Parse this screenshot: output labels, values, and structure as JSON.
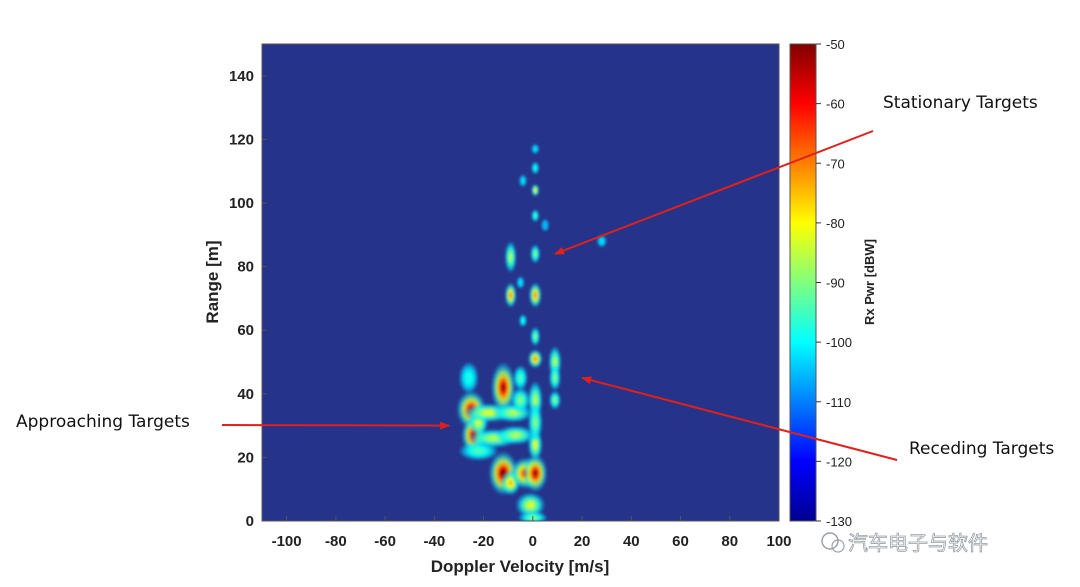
{
  "chart_data": {
    "type": "heatmap",
    "title": "",
    "xlabel": "Doppler Velocity [m/s]",
    "ylabel": "Range [m]",
    "xlim": [
      -110,
      100
    ],
    "ylim": [
      0,
      150
    ],
    "xticks": [
      -100,
      -80,
      -60,
      -40,
      -20,
      0,
      20,
      40,
      60,
      80,
      100
    ],
    "yticks": [
      0,
      20,
      40,
      60,
      80,
      100,
      120,
      140
    ],
    "colorbar": {
      "label": "Rx Pwr [dBW]",
      "range": [
        -130,
        -50
      ],
      "ticks": [
        -50,
        -60,
        -70,
        -80,
        -90,
        -100,
        -110,
        -120,
        -130
      ],
      "colormap": "jet"
    },
    "background_color": "#25338a",
    "blobs": [
      {
        "v": -25,
        "r": 35,
        "dv": 3,
        "dr": 3,
        "level": 0.95
      },
      {
        "v": -24,
        "r": 27,
        "dv": 2.5,
        "dr": 3,
        "level": 0.95
      },
      {
        "v": -22,
        "r": 31,
        "dv": 2,
        "dr": 2,
        "level": 0.6
      },
      {
        "v": -18,
        "r": 34,
        "dv": 5,
        "dr": 1.5,
        "level": 0.6
      },
      {
        "v": -16,
        "r": 26,
        "dv": 5,
        "dr": 1.5,
        "level": 0.55
      },
      {
        "v": -22,
        "r": 22,
        "dv": 4,
        "dr": 1.5,
        "level": 0.45
      },
      {
        "v": -26,
        "r": 45,
        "dv": 2,
        "dr": 2.5,
        "level": 0.4
      },
      {
        "v": -12,
        "r": 42,
        "dv": 2.5,
        "dr": 4,
        "level": 0.95
      },
      {
        "v": -12,
        "r": 15,
        "dv": 3,
        "dr": 3.5,
        "level": 1.0
      },
      {
        "v": -9,
        "r": 12,
        "dv": 2,
        "dr": 2,
        "level": 0.7
      },
      {
        "v": -8,
        "r": 34,
        "dv": 4,
        "dr": 1.5,
        "level": 0.55
      },
      {
        "v": -7,
        "r": 27,
        "dv": 4,
        "dr": 1.5,
        "level": 0.55
      },
      {
        "v": -5,
        "r": 38,
        "dv": 2,
        "dr": 2,
        "level": 0.5
      },
      {
        "v": -5,
        "r": 45,
        "dv": 1.5,
        "dr": 2,
        "level": 0.45
      },
      {
        "v": -3,
        "r": 15,
        "dv": 3,
        "dr": 2.5,
        "level": 0.85
      },
      {
        "v": 1,
        "r": 15,
        "dv": 2.5,
        "dr": 3,
        "level": 0.95
      },
      {
        "v": 1,
        "r": 24,
        "dv": 1.5,
        "dr": 2.5,
        "level": 0.6
      },
      {
        "v": -1,
        "r": 5,
        "dv": 3,
        "dr": 2,
        "level": 0.6
      },
      {
        "v": 0,
        "r": 1,
        "dv": 3,
        "dr": 1,
        "level": 0.5
      },
      {
        "v": 1,
        "r": 38,
        "dv": 1.5,
        "dr": 3,
        "level": 0.55
      },
      {
        "v": 1,
        "r": 31,
        "dv": 1.5,
        "dr": 3,
        "level": 0.5
      },
      {
        "v": 1,
        "r": 51,
        "dv": 1.5,
        "dr": 1.5,
        "level": 0.75
      },
      {
        "v": 1,
        "r": 58,
        "dv": 1,
        "dr": 1.5,
        "level": 0.5
      },
      {
        "v": 1,
        "r": 71,
        "dv": 1.3,
        "dr": 2,
        "level": 0.75
      },
      {
        "v": 1,
        "r": 84,
        "dv": 1,
        "dr": 1.5,
        "level": 0.5
      },
      {
        "v": 1,
        "r": 96,
        "dv": 0.8,
        "dr": 1,
        "level": 0.45
      },
      {
        "v": 1,
        "r": 104,
        "dv": 0.8,
        "dr": 1,
        "level": 0.65
      },
      {
        "v": 1,
        "r": 111,
        "dv": 0.6,
        "dr": 1,
        "level": 0.4
      },
      {
        "v": 1,
        "r": 117,
        "dv": 0.6,
        "dr": 0.8,
        "level": 0.35
      },
      {
        "v": -9,
        "r": 71,
        "dv": 1.2,
        "dr": 2,
        "level": 0.75
      },
      {
        "v": -9,
        "r": 83,
        "dv": 1.2,
        "dr": 2.5,
        "level": 0.55
      },
      {
        "v": -4,
        "r": 63,
        "dv": 0.8,
        "dr": 1,
        "level": 0.4
      },
      {
        "v": -5,
        "r": 75,
        "dv": 0.8,
        "dr": 1,
        "level": 0.35
      },
      {
        "v": -4,
        "r": 107,
        "dv": 0.6,
        "dr": 1,
        "level": 0.35
      },
      {
        "v": 5,
        "r": 93,
        "dv": 0.6,
        "dr": 1,
        "level": 0.3
      },
      {
        "v": 9,
        "r": 50,
        "dv": 1.3,
        "dr": 2.5,
        "level": 0.55
      },
      {
        "v": 9,
        "r": 45,
        "dv": 1.2,
        "dr": 2,
        "level": 0.5
      },
      {
        "v": 9,
        "r": 38,
        "dv": 1.2,
        "dr": 1.5,
        "level": 0.5
      },
      {
        "v": 28,
        "r": 88,
        "dv": 1,
        "dr": 1,
        "level": 0.35
      }
    ],
    "annotations": [
      {
        "text": "Stationary Targets",
        "arrow_to_v": 9,
        "arrow_to_r": 84
      },
      {
        "text": "Approaching Targets",
        "arrow_to_v": -34,
        "arrow_to_r": 30
      },
      {
        "text": "Receding Targets",
        "arrow_to_v": 20,
        "arrow_to_r": 45
      }
    ]
  },
  "watermark": "汽车电子与软件"
}
